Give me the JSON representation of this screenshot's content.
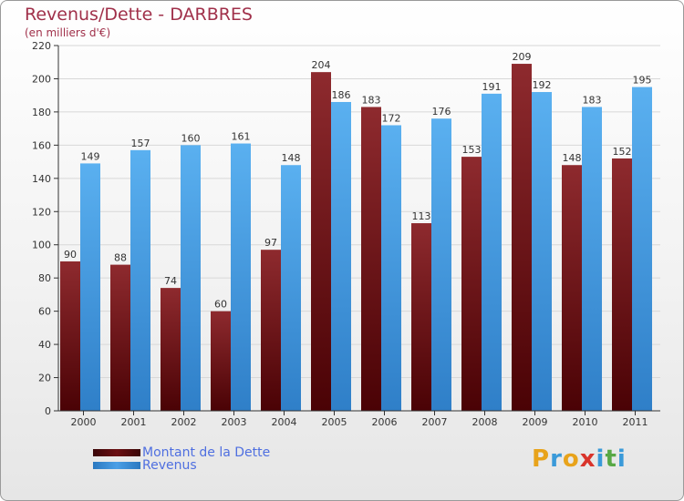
{
  "header": {
    "title": "Revenus/Dette - DARBRES",
    "subtitle": "(en milliers d'€)"
  },
  "legend": {
    "items": [
      {
        "label": "Montant de la Dette",
        "color": "#6b0f12"
      },
      {
        "label": "Revenus",
        "color": "#4a9fe6"
      }
    ]
  },
  "logo": {
    "text": "Proxiti",
    "letters": [
      "P",
      "r",
      "o",
      "x",
      "i",
      "t",
      "i"
    ],
    "colors": [
      "#e8a31b",
      "#3a9ad9",
      "#e8a31b",
      "#d9342b",
      "#3a9ad9",
      "#58a845",
      "#3a9ad9"
    ]
  },
  "colors": {
    "dette": "#7a1a1d",
    "revenus": "#4aa3ea",
    "axis": "#333333",
    "grid": "#d8d8d8"
  },
  "chart_data": {
    "type": "bar",
    "title": "Revenus/Dette - DARBRES",
    "subtitle": "(en milliers d'€)",
    "categories": [
      "2000",
      "2001",
      "2002",
      "2003",
      "2004",
      "2005",
      "2006",
      "2007",
      "2008",
      "2009",
      "2010",
      "2011"
    ],
    "series": [
      {
        "name": "Montant de la Dette",
        "values": [
          90,
          88,
          74,
          60,
          97,
          204,
          183,
          113,
          153,
          209,
          148,
          152
        ]
      },
      {
        "name": "Revenus",
        "values": [
          149,
          157,
          160,
          161,
          148,
          186,
          172,
          176,
          191,
          192,
          183,
          195
        ]
      }
    ],
    "ylim": [
      0,
      220
    ],
    "yticks": [
      0,
      20,
      40,
      60,
      80,
      100,
      120,
      140,
      160,
      180,
      200,
      220
    ],
    "grid": true,
    "legend_position": "bottom-left"
  }
}
